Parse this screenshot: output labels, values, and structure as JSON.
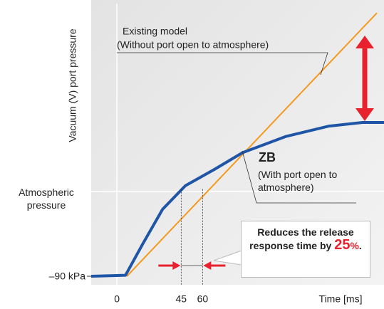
{
  "chart_data": {
    "type": "line",
    "y_label": "Vacuum (V) port pressure",
    "x_label": "Time [ms]",
    "xlim": [
      -18,
      187
    ],
    "ylim": [
      -90,
      199
    ],
    "xticks": [
      0,
      45,
      60
    ],
    "yticks": [
      {
        "value": 0,
        "label": "Atmospheric pressure"
      },
      {
        "value": -90,
        "label": "–90 kPa"
      }
    ],
    "series": [
      {
        "name": "Existing model",
        "color": "#f39a1e",
        "x": [
          7,
          182
        ],
        "values": [
          -90,
          189
        ]
      },
      {
        "name": "ZB",
        "color": "#1f55a6",
        "x": [
          -18,
          6,
          18,
          32,
          48,
          68,
          88,
          118,
          148,
          172,
          187
        ],
        "values": [
          -90,
          -89,
          -56,
          -19,
          6,
          23,
          41,
          58,
          69,
          73,
          73
        ]
      }
    ],
    "annotations": {
      "existing_note": "(Without port open to atmosphere)",
      "zb_note": "(With port open to atmosphere)",
      "callout": "Reduces the release response time by",
      "callout_value": "25",
      "callout_unit": "%",
      "callout_end": "."
    }
  }
}
